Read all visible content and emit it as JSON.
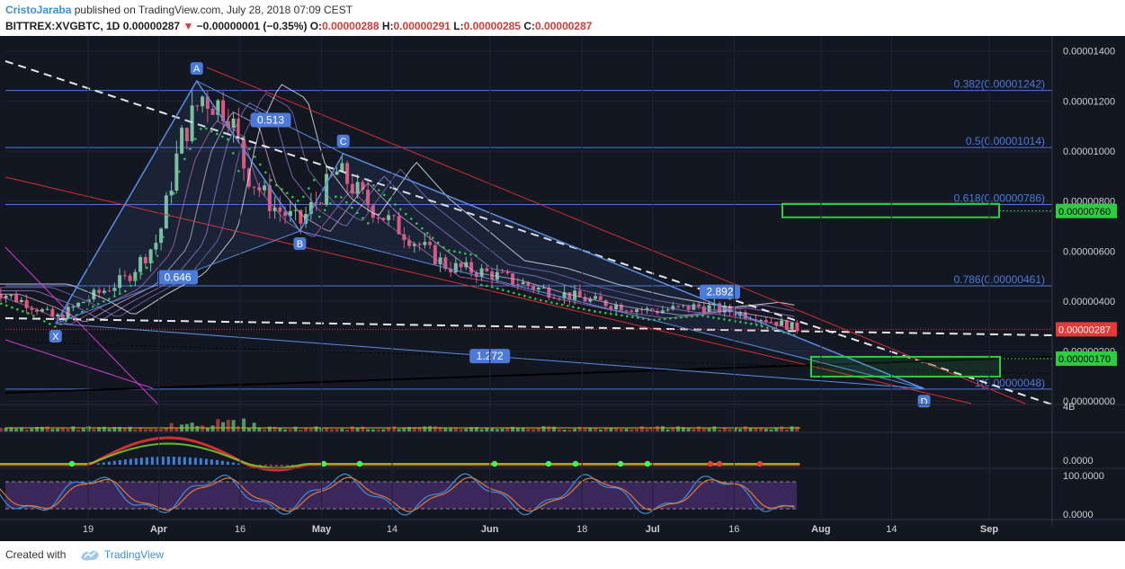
{
  "header": {
    "author": "CristoJaraba",
    "published_text": "published on TradingView.com, July 28, 2018 07:09 CEST",
    "symbol": "BITTREX:XVGBTC, 1D",
    "last": "0.00000287",
    "change": "−0.00000001 (−0.35%)",
    "o_label": "O:",
    "o_value": "0.00000288",
    "h_label": "H:",
    "h_value": "0.00000291",
    "l_label": "L:",
    "l_value": "0.00000285",
    "c_label": "C:",
    "c_value": "0.00000287"
  },
  "footer": {
    "created_with": "Created with",
    "brand": "TradingView"
  },
  "colors": {
    "background": "#131722",
    "up_candle": "#7fc59a",
    "down_candle": "#e0587a",
    "fib_line": "#4c7ad9",
    "pattern": "#5a8ee0",
    "trend_red": "#d32f2f",
    "dashed_white": "#e6e6e6",
    "green_box": "#2ecc40",
    "price_tag": "#e53935"
  },
  "chart_data": {
    "type": "candlestick",
    "y_axis_ticks": [
      "0.00001400",
      "0.00001200",
      "0.00001000",
      "0.00000800",
      "0.00000600",
      "0.00000400",
      "0.00000200",
      "0.00000000"
    ],
    "ylim": [
      -1e-07,
      1.46e-05
    ],
    "x_axis_ticks": [
      "19",
      "Apr",
      "16",
      "May",
      "14",
      "Jun",
      "18",
      "Jul",
      "16",
      "Aug",
      "14",
      "Sep"
    ],
    "fib_levels": [
      {
        "label": "0.382(0.00001242)",
        "value": 1.242e-05
      },
      {
        "label": "0.5(0.00001014)",
        "value": 1.014e-05
      },
      {
        "label": "0.618(0.00000786)",
        "value": 7.86e-06
      },
      {
        "label": "0.786(0.00000461)",
        "value": 4.61e-06
      },
      {
        "label": "1(0.00000048)",
        "value": 4.8e-07
      }
    ],
    "pattern_points": [
      {
        "label": "X",
        "date": "2018-03-13",
        "price": 3.1e-06
      },
      {
        "label": "A",
        "date": "2018-04-08",
        "price": 1.28e-05
      },
      {
        "label": "B",
        "date": "2018-04-27",
        "price": 6.8e-06
      },
      {
        "label": "C",
        "date": "2018-05-05",
        "price": 9.9e-06
      },
      {
        "label": "D",
        "date": "2018-08-20",
        "price": 5e-07
      }
    ],
    "pattern_ratios": [
      "0.513",
      "0.646",
      "2.892",
      "1.272"
    ],
    "price_tags": [
      {
        "label": "0.00000760",
        "value": 7.6e-06,
        "color": "green"
      },
      {
        "label": "0.00000287",
        "value": 2.87e-06,
        "color": "red"
      },
      {
        "label": "0.00000170",
        "value": 1.7e-06,
        "color": "green"
      }
    ],
    "volume_label": "4B",
    "macd_label": "0.0000",
    "stoch_ticks": [
      "100.0000",
      "0.0000"
    ],
    "candles_close_approx": [
      [
        "2018-03-01",
        4.5e-06
      ],
      [
        "2018-03-08",
        3.9e-06
      ],
      [
        "2018-03-13",
        3.3e-06
      ],
      [
        "2018-03-19",
        4.1e-06
      ],
      [
        "2018-03-26",
        4.9e-06
      ],
      [
        "2018-04-01",
        6.5e-06
      ],
      [
        "2018-04-05",
        1.04e-05
      ],
      [
        "2018-04-09",
        1.22e-05
      ],
      [
        "2018-04-14",
        1.16e-05
      ],
      [
        "2018-04-17",
        9.2e-06
      ],
      [
        "2018-04-22",
        7.8e-06
      ],
      [
        "2018-04-27",
        7.1e-06
      ],
      [
        "2018-05-04",
        9.2e-06
      ],
      [
        "2018-05-10",
        7.8e-06
      ],
      [
        "2018-05-17",
        6.6e-06
      ],
      [
        "2018-05-24",
        5.4e-06
      ],
      [
        "2018-06-01",
        5.1e-06
      ],
      [
        "2018-06-10",
        4.5e-06
      ],
      [
        "2018-06-20",
        4e-06
      ],
      [
        "2018-07-01",
        3.6e-06
      ],
      [
        "2018-07-10",
        3.8e-06
      ],
      [
        "2018-07-20",
        3.4e-06
      ],
      [
        "2018-07-28",
        2.87e-06
      ]
    ]
  }
}
